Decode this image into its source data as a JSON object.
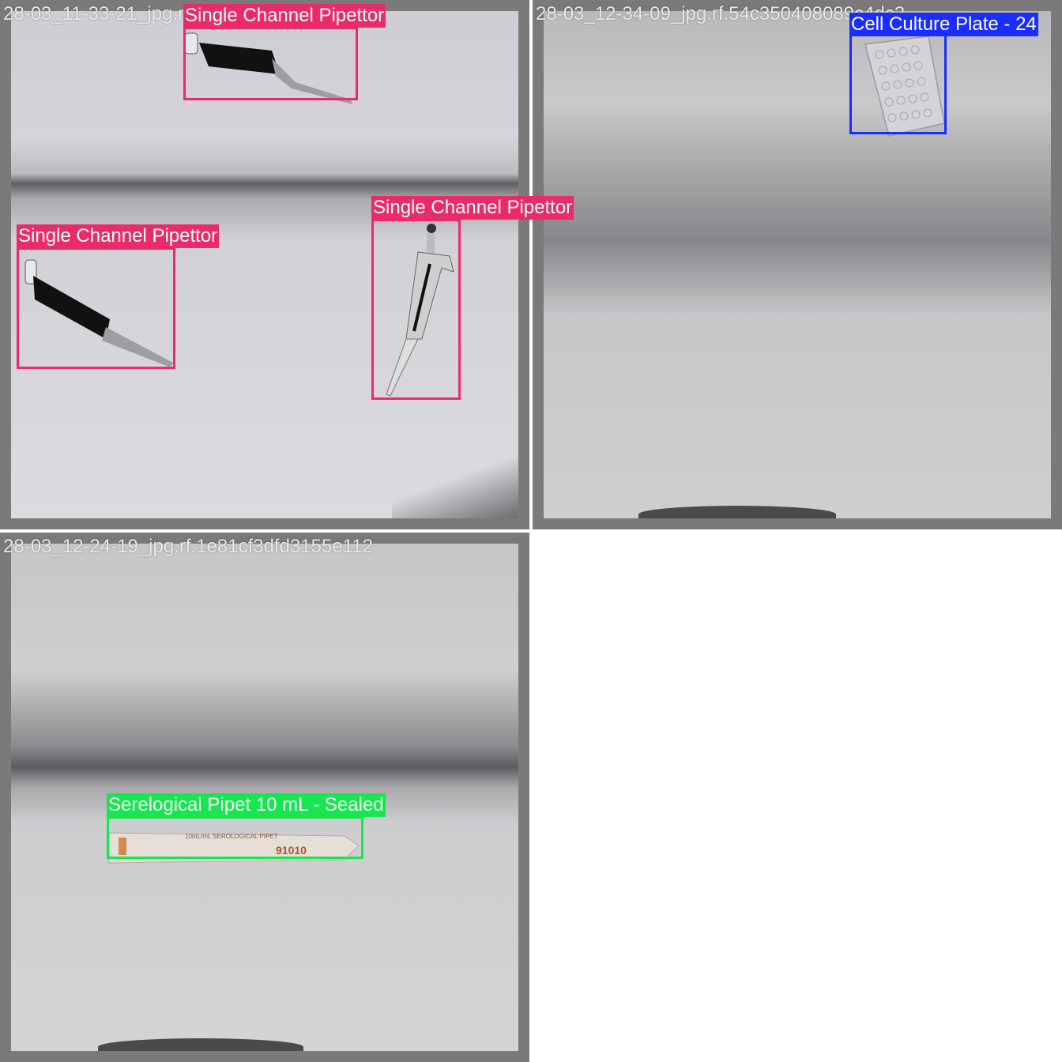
{
  "tiles": [
    {
      "title": "28-03_11-33-21_jpg.rf.0b8d0bd6c3a9",
      "detections": [
        {
          "label": "Single Channel Pipettor",
          "color": "#ea2b6a"
        },
        {
          "label": "Single Channel Pipettor",
          "color": "#ea2b6a"
        },
        {
          "label": "Single Channel Pipettor",
          "color": "#ea2b6a"
        }
      ]
    },
    {
      "title": "28-03_12-34-09_jpg.rf.54c350408089c4dc2",
      "detections": [
        {
          "label": "Cell Culture Plate - 24",
          "color": "#1a2dff"
        }
      ]
    },
    {
      "title": "28-03_12-24-19_jpg.rf.1e81cf3dfd3155e112",
      "detections": [
        {
          "label": "Serelogical Pipet 10 mL - Sealed",
          "color": "#17e650"
        }
      ],
      "pipet_text": {
        "product": "10mL/mL SEROLOGICAL PIPET",
        "code": "91010"
      }
    }
  ]
}
